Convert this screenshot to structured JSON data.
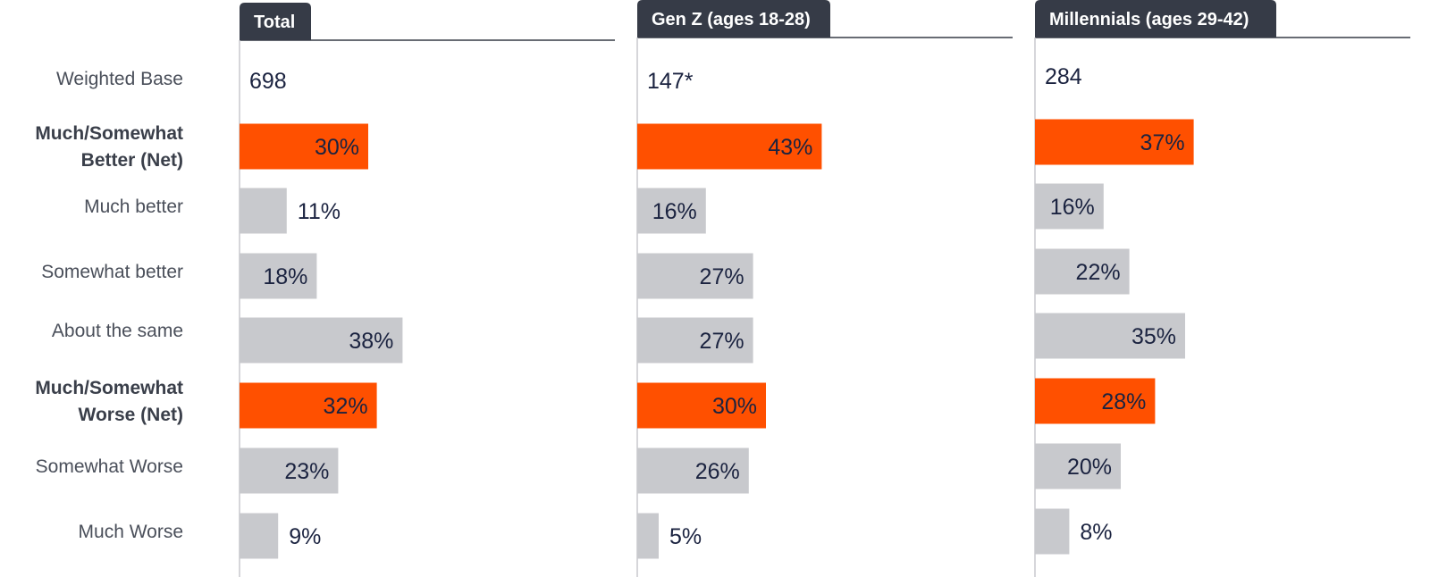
{
  "chart_data": {
    "type": "bar",
    "orientation": "horizontal",
    "row_labels": [
      "Weighted Base",
      "Much/Somewhat Better (Net)",
      "Much better",
      "Somewhat better",
      "About the same",
      "Much/Somewhat Worse (Net)",
      "Somewhat Worse",
      "Much Worse"
    ],
    "bold_rows": [
      "Much/Somewhat Better (Net)",
      "Much/Somewhat Worse (Net)"
    ],
    "highlight_rows": [
      "Much/Somewhat Better (Net)",
      "Much/Somewhat Worse (Net)"
    ],
    "xlim": [
      0,
      100
    ],
    "value_suffix": "%",
    "panels": [
      {
        "name": "Total",
        "weighted_base": "698",
        "values": [
          30,
          11,
          18,
          38,
          32,
          23,
          9
        ],
        "value_labels": [
          "30%",
          "11%",
          "18%",
          "38%",
          "32%",
          "23%",
          "9%"
        ]
      },
      {
        "name": "Gen Z (ages 18-28)",
        "weighted_base": "147*",
        "values": [
          43,
          16,
          27,
          27,
          30,
          26,
          5
        ],
        "value_labels": [
          "43%",
          "16%",
          "27%",
          "27%",
          "30%",
          "26%",
          "5%"
        ]
      },
      {
        "name": "Millennials (ages 29-42)",
        "weighted_base": "284",
        "values": [
          37,
          16,
          22,
          35,
          28,
          20,
          8
        ],
        "value_labels": [
          "37%",
          "16%",
          "22%",
          "35%",
          "28%",
          "20%",
          "8%"
        ]
      }
    ],
    "colors": {
      "net_bar": "#ff5000",
      "detail_bar": "#c8c9cd",
      "tab_background": "#363b47",
      "value_text": "#1b2340",
      "axis_line": "#c8c9cd"
    }
  }
}
